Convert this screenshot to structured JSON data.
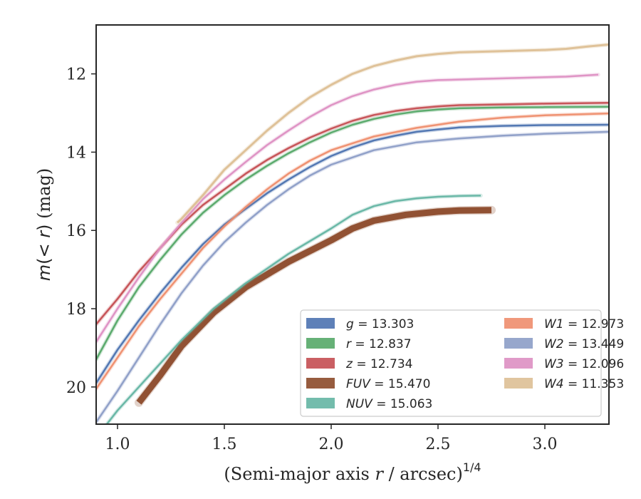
{
  "chart_data": {
    "type": "line",
    "xlabel": "(Semi-major axis r / arcsec)^{1/4}",
    "ylabel": "m(< r) (mag)",
    "xlim": [
      0.9,
      3.3
    ],
    "ylim": [
      20.95,
      10.75
    ],
    "y_inverted": true,
    "grid": false,
    "legend_position": "lower-right",
    "xticks": [
      1.0,
      1.5,
      2.0,
      2.5,
      3.0
    ],
    "xtick_labels": [
      "1.0",
      "1.5",
      "2.0",
      "2.5",
      "3.0"
    ],
    "yticks": [
      12,
      14,
      16,
      18,
      20
    ],
    "ytick_labels": [
      "12",
      "14",
      "16",
      "18",
      "20"
    ],
    "series": [
      {
        "name": "g = 13.303",
        "band": "g",
        "total": "13.303",
        "color": "#4c72b0",
        "width": 2.5,
        "x": [
          0.9,
          1.0,
          1.1,
          1.2,
          1.3,
          1.4,
          1.5,
          1.6,
          1.7,
          1.8,
          1.9,
          2.0,
          2.1,
          2.2,
          2.3,
          2.4,
          2.5,
          2.6,
          2.8,
          3.0,
          3.3
        ],
        "y": [
          19.9,
          19.05,
          18.3,
          17.6,
          16.95,
          16.35,
          15.85,
          15.45,
          15.05,
          14.7,
          14.38,
          14.1,
          13.88,
          13.7,
          13.58,
          13.48,
          13.42,
          13.37,
          13.33,
          13.31,
          13.3
        ]
      },
      {
        "name": "r = 12.837",
        "band": "r",
        "total": "12.837",
        "color": "#55a868",
        "width": 2.5,
        "x": [
          0.9,
          1.0,
          1.1,
          1.2,
          1.3,
          1.4,
          1.5,
          1.6,
          1.7,
          1.8,
          1.9,
          2.0,
          2.1,
          2.2,
          2.3,
          2.4,
          2.5,
          2.6,
          2.8,
          3.0,
          3.3
        ],
        "y": [
          19.3,
          18.3,
          17.45,
          16.75,
          16.1,
          15.55,
          15.1,
          14.7,
          14.35,
          14.03,
          13.75,
          13.5,
          13.3,
          13.15,
          13.04,
          12.96,
          12.91,
          12.88,
          12.86,
          12.85,
          12.84
        ]
      },
      {
        "name": "z = 12.734",
        "band": "z",
        "total": "12.734",
        "color": "#c44e52",
        "width": 2.5,
        "x": [
          0.9,
          1.0,
          1.1,
          1.2,
          1.3,
          1.4,
          1.5,
          1.6,
          1.7,
          1.8,
          1.9,
          2.0,
          2.1,
          2.2,
          2.3,
          2.4,
          2.5,
          2.6,
          2.8,
          3.0,
          3.3
        ],
        "y": [
          18.4,
          17.75,
          17.05,
          16.45,
          15.85,
          15.35,
          14.95,
          14.55,
          14.2,
          13.9,
          13.63,
          13.4,
          13.2,
          13.05,
          12.95,
          12.88,
          12.83,
          12.8,
          12.78,
          12.76,
          12.74
        ]
      },
      {
        "name": "FUV = 15.470",
        "band": "FUV",
        "total": "15.470",
        "color": "#8c4a2a",
        "width": 9,
        "x": [
          1.1,
          1.2,
          1.3,
          1.45,
          1.6,
          1.8,
          2.0,
          2.1,
          2.2,
          2.35,
          2.5,
          2.6,
          2.75
        ],
        "y": [
          20.4,
          19.7,
          18.95,
          18.1,
          17.45,
          16.8,
          16.25,
          15.95,
          15.75,
          15.6,
          15.52,
          15.49,
          15.48
        ]
      },
      {
        "name": "NUV = 15.063",
        "band": "NUV",
        "total": "15.063",
        "color": "#64b5a3",
        "width": 2.5,
        "x": [
          0.95,
          1.0,
          1.1,
          1.2,
          1.3,
          1.45,
          1.6,
          1.8,
          2.0,
          2.1,
          2.2,
          2.3,
          2.4,
          2.5,
          2.6,
          2.7
        ],
        "y": [
          20.95,
          20.6,
          20.0,
          19.4,
          18.8,
          18.0,
          17.35,
          16.6,
          15.95,
          15.6,
          15.38,
          15.25,
          15.18,
          15.14,
          15.12,
          15.11
        ]
      },
      {
        "name": "W1 = 12.973",
        "band": "W1",
        "total": "12.973",
        "color": "#ee8d6d",
        "width": 2.5,
        "x": [
          0.9,
          1.0,
          1.1,
          1.2,
          1.3,
          1.4,
          1.5,
          1.6,
          1.7,
          1.8,
          1.9,
          2.0,
          2.2,
          2.4,
          2.6,
          2.8,
          3.0,
          3.3
        ],
        "y": [
          20.05,
          19.25,
          18.45,
          17.75,
          17.1,
          16.45,
          15.9,
          15.4,
          14.95,
          14.55,
          14.22,
          13.95,
          13.6,
          13.38,
          13.22,
          13.12,
          13.06,
          13.01
        ]
      },
      {
        "name": "W2 = 13.449",
        "band": "W2",
        "total": "13.449",
        "color": "#8c9dc6",
        "width": 2.5,
        "x": [
          0.9,
          1.0,
          1.1,
          1.2,
          1.3,
          1.4,
          1.5,
          1.6,
          1.7,
          1.8,
          1.9,
          2.0,
          2.2,
          2.4,
          2.6,
          2.8,
          3.0,
          3.3
        ],
        "y": [
          20.9,
          20.1,
          19.25,
          18.4,
          17.6,
          16.9,
          16.3,
          15.8,
          15.35,
          14.95,
          14.6,
          14.32,
          13.95,
          13.75,
          13.65,
          13.58,
          13.53,
          13.48
        ]
      },
      {
        "name": "W3 = 12.096",
        "band": "W3",
        "total": "12.096",
        "color": "#dd8fc2",
        "width": 2.5,
        "x": [
          0.9,
          1.0,
          1.1,
          1.2,
          1.3,
          1.4,
          1.5,
          1.6,
          1.7,
          1.8,
          1.9,
          2.0,
          2.1,
          2.2,
          2.3,
          2.4,
          2.5,
          2.7,
          2.9,
          3.1,
          3.25
        ],
        "y": [
          18.85,
          18.0,
          17.2,
          16.45,
          15.8,
          15.2,
          14.7,
          14.25,
          13.82,
          13.45,
          13.1,
          12.8,
          12.57,
          12.4,
          12.28,
          12.2,
          12.16,
          12.13,
          12.1,
          12.07,
          12.02
        ]
      },
      {
        "name": "W4 = 11.353",
        "band": "W4",
        "total": "11.353",
        "color": "#ddbf95",
        "width": 3,
        "x": [
          1.28,
          1.3,
          1.4,
          1.5,
          1.6,
          1.7,
          1.8,
          1.9,
          2.0,
          2.1,
          2.2,
          2.3,
          2.4,
          2.5,
          2.6,
          2.8,
          3.0,
          3.1,
          3.2,
          3.3
        ],
        "y": [
          15.8,
          15.7,
          15.1,
          14.45,
          13.95,
          13.45,
          13.0,
          12.6,
          12.28,
          12.0,
          11.8,
          11.66,
          11.55,
          11.49,
          11.45,
          11.42,
          11.39,
          11.36,
          11.3,
          11.25
        ]
      }
    ],
    "legend_columns": [
      [
        "g = 13.303",
        "r = 12.837",
        "z = 12.734",
        "FUV = 15.470",
        "NUV = 15.063"
      ],
      [
        "W1 = 12.973",
        "W2 = 13.449",
        "W3 = 12.096",
        "W4 = 11.353"
      ]
    ]
  }
}
